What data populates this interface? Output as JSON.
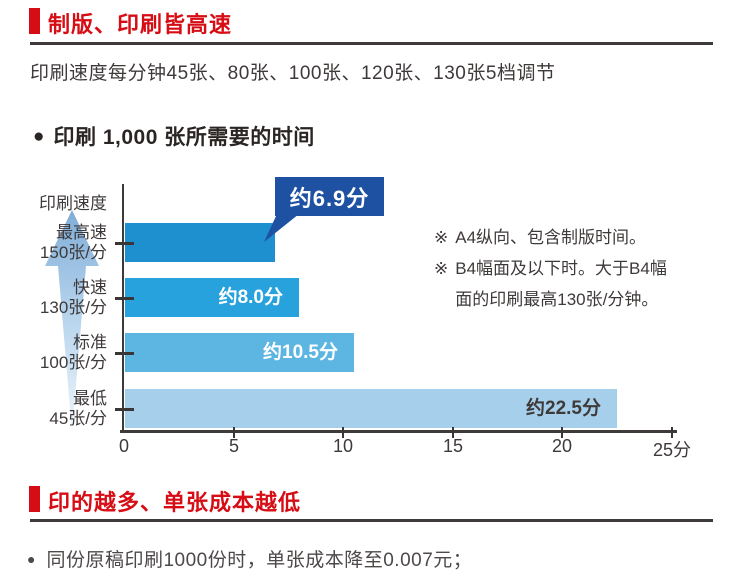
{
  "colors": {
    "accent_red": "#d60d14",
    "divider": "#3e3a39",
    "text_dark": "#3e3a39",
    "axis": "#3e3a39",
    "callout_bg": "#1e51a2",
    "arrow_top": "#7fadd8",
    "arrow_bottom": "#eef6fc"
  },
  "section_speed": {
    "heading": "制版、印刷皆高速",
    "subtitle": "印刷速度每分钟45张、80张、100张、120张、130张5档调节"
  },
  "chart": {
    "marker": "●",
    "title": "印刷 1,000 张所需要的时间"
  },
  "chart_data": {
    "type": "bar",
    "orientation": "horizontal",
    "title": "印刷 1,000 张所需要的时间",
    "ylabel": "印刷速度",
    "categories": [
      [
        "最高速",
        "150张/分"
      ],
      [
        "快速",
        "130张/分"
      ],
      [
        "标准",
        "100张/分"
      ],
      [
        "最低",
        "45张/分"
      ]
    ],
    "values": [
      6.9,
      8.0,
      10.5,
      22.5
    ],
    "value_labels": [
      "约6.9分",
      "约8.0分",
      "约10.5分",
      "约22.5分"
    ],
    "value_label_colors": [
      "#ffffff",
      "#ffffff",
      "#ffffff",
      "#3e3a39"
    ],
    "bar_colors": [
      "#1f90cf",
      "#27a2dc",
      "#5db6e1",
      "#a6cfec"
    ],
    "xlim": [
      0,
      25
    ],
    "x_ticks": {
      "values": [
        0,
        5,
        10,
        15,
        20,
        25
      ],
      "labels": [
        "0",
        "5",
        "10",
        "15",
        "20",
        "25分"
      ]
    },
    "callout": {
      "index": 0,
      "label": "约6.9分"
    },
    "notes": [
      {
        "marker": "※",
        "text": "A4纵向、包含制版时间。"
      },
      {
        "marker": "※",
        "text": "B4幅面及以下时。大于B4幅面的印刷最高130张/分钟。"
      }
    ]
  },
  "section_cost": {
    "heading": "印的越多、单张成本越低",
    "bullet_marker": "●",
    "bullet": "同份原稿印刷1000份时，单张成本降至0.007元；"
  }
}
